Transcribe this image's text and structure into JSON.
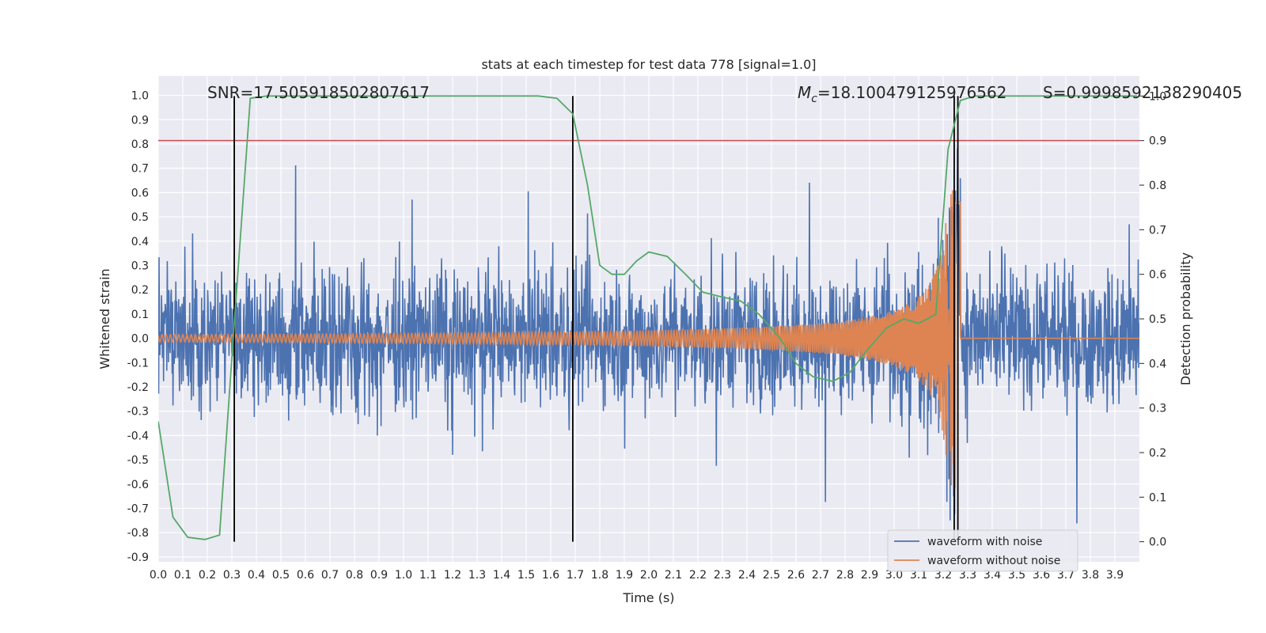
{
  "chart_data": {
    "type": "line",
    "title": "stats at each timestep for test data 778 [signal=1.0]",
    "xlabel": "Time (s)",
    "ylabel": "Whitened strain",
    "y2label": "Detection probability",
    "xlim": [
      0.0,
      4.0
    ],
    "ylim": [
      -0.92,
      1.08
    ],
    "y2lim": [
      -0.045,
      1.045
    ],
    "xticks": [
      "0.0",
      "0.1",
      "0.2",
      "0.3",
      "0.4",
      "0.5",
      "0.6",
      "0.7",
      "0.8",
      "0.9",
      "1.0",
      "1.1",
      "1.2",
      "1.3",
      "1.4",
      "1.5",
      "1.6",
      "1.7",
      "1.8",
      "1.9",
      "2.0",
      "2.1",
      "2.2",
      "2.3",
      "2.4",
      "2.5",
      "2.6",
      "2.7",
      "2.8",
      "2.9",
      "3.0",
      "3.1",
      "3.2",
      "3.3",
      "3.4",
      "3.5",
      "3.6",
      "3.7",
      "3.8",
      "3.9"
    ],
    "yticks": [
      "1.0",
      "0.9",
      "0.8",
      "0.7",
      "0.6",
      "0.5",
      "0.4",
      "0.3",
      "0.2",
      "0.1",
      "0.0",
      "-0.1",
      "-0.2",
      "-0.3",
      "-0.4",
      "-0.5",
      "-0.6",
      "-0.7",
      "-0.8",
      "-0.9"
    ],
    "y2ticks": [
      "1.0",
      "0.9",
      "0.8",
      "0.7",
      "0.6",
      "0.5",
      "0.4",
      "0.3",
      "0.2",
      "0.1",
      "0.0"
    ],
    "grid": true,
    "legend_position": "bottom-right",
    "annotations": {
      "snr": "SNR=17.505918502807617",
      "mc_symbol": "M",
      "mc_sub": "c",
      "mc_value": "=18.100479125976562",
      "s_value": "S=0.9998592138290405"
    },
    "series": [
      {
        "name": "waveform with noise",
        "color": "#4c72b0",
        "axis": "left",
        "noise_amplitude": 0.2,
        "x_range": [
          0.0,
          4.0
        ]
      },
      {
        "name": "waveform without noise",
        "color": "#dd8452",
        "axis": "left",
        "chirp_start_amplitude": 0.015,
        "chirp_peak_amplitude": 0.62,
        "merger_time": 3.25
      },
      {
        "name": "detection probability",
        "color": "#55a868",
        "axis": "right",
        "x": [
          0.0,
          0.06,
          0.12,
          0.19,
          0.25,
          0.31,
          0.375,
          0.44,
          0.5,
          0.7,
          0.9,
          1.1,
          1.3,
          1.45,
          1.55,
          1.625,
          1.69,
          1.75,
          1.8,
          1.85,
          1.9,
          1.95,
          2.0,
          2.075,
          2.15,
          2.22,
          2.29,
          2.375,
          2.45,
          2.53,
          2.6,
          2.67,
          2.75,
          2.82,
          2.89,
          2.97,
          3.04,
          3.1,
          3.17,
          3.22,
          3.27,
          3.33,
          3.4,
          3.6,
          3.8,
          3.99
        ],
        "y": [
          0.27,
          0.055,
          0.01,
          0.005,
          0.015,
          0.49,
          0.995,
          1.0,
          1.0,
          1.0,
          1.0,
          1.0,
          1.0,
          1.0,
          1.0,
          0.995,
          0.96,
          0.8,
          0.62,
          0.6,
          0.6,
          0.63,
          0.65,
          0.64,
          0.6,
          0.56,
          0.55,
          0.54,
          0.51,
          0.46,
          0.4,
          0.37,
          0.36,
          0.38,
          0.43,
          0.48,
          0.5,
          0.49,
          0.51,
          0.88,
          0.99,
          1.0,
          1.0,
          1.0,
          1.0,
          1.0
        ]
      },
      {
        "name": "threshold",
        "color": "#c44e52",
        "axis": "right",
        "value": 0.9
      }
    ],
    "vertical_lines": [
      0.31,
      1.69,
      3.245,
      3.26
    ]
  }
}
